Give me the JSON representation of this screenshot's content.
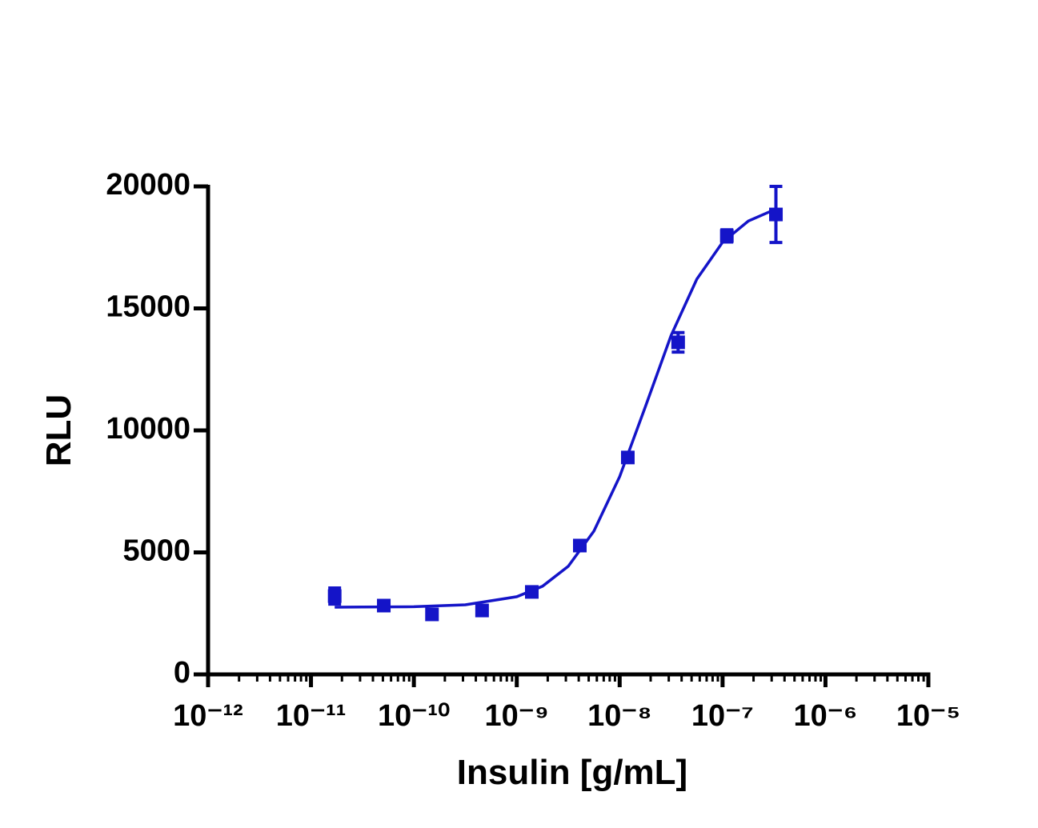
{
  "chart_data": {
    "type": "dose-response",
    "x_label": "Insulin [g/mL]",
    "y_label": "RLU",
    "xscale": "log",
    "xlim": [
      1e-12,
      1e-05
    ],
    "xticks": [
      {
        "value": 1e-12,
        "label": "10⁻¹²"
      },
      {
        "value": 1e-11,
        "label": "10⁻¹¹"
      },
      {
        "value": 1e-10,
        "label": "10⁻¹⁰"
      },
      {
        "value": 1e-09,
        "label": "10⁻⁹"
      },
      {
        "value": 1e-08,
        "label": "10⁻⁸"
      },
      {
        "value": 1e-07,
        "label": "10⁻⁷"
      },
      {
        "value": 1e-06,
        "label": "10⁻⁶"
      },
      {
        "value": 1e-05,
        "label": "10⁻⁵"
      }
    ],
    "minor_ticks": true,
    "ylim": [
      0,
      20000
    ],
    "yticks": [
      0,
      5000,
      10000,
      15000,
      20000
    ],
    "series": [
      {
        "color": "#1414c8",
        "x": [
          1.7e-11,
          5.1e-11,
          1.5e-10,
          4.6e-10,
          1.4e-09,
          4.1e-09,
          1.2e-08,
          3.7e-08,
          1.1e-07,
          3.3e-07
        ],
        "values": [
          3210,
          2820,
          2460,
          2620,
          3380,
          5280,
          8890,
          13610,
          17970,
          18850
        ],
        "errors": [
          330,
          120,
          150,
          150,
          120,
          120,
          120,
          400,
          250,
          1150
        ]
      }
    ],
    "fit": {
      "color": "#1414c8",
      "x": [
        1.7e-11,
        3.16e-11,
        1e-10,
        3.16e-10,
        1e-09,
        1.78e-09,
        3.16e-09,
        5.62e-09,
        1e-08,
        1.78e-08,
        3.16e-08,
        5.62e-08,
        1e-07,
        1.78e-07,
        3.16e-07
      ],
      "values": [
        2753,
        2760,
        2775,
        2854,
        3182,
        3613,
        4431,
        5872,
        8108,
        10981,
        13887,
        16199,
        17712,
        18579,
        19038
      ]
    }
  }
}
